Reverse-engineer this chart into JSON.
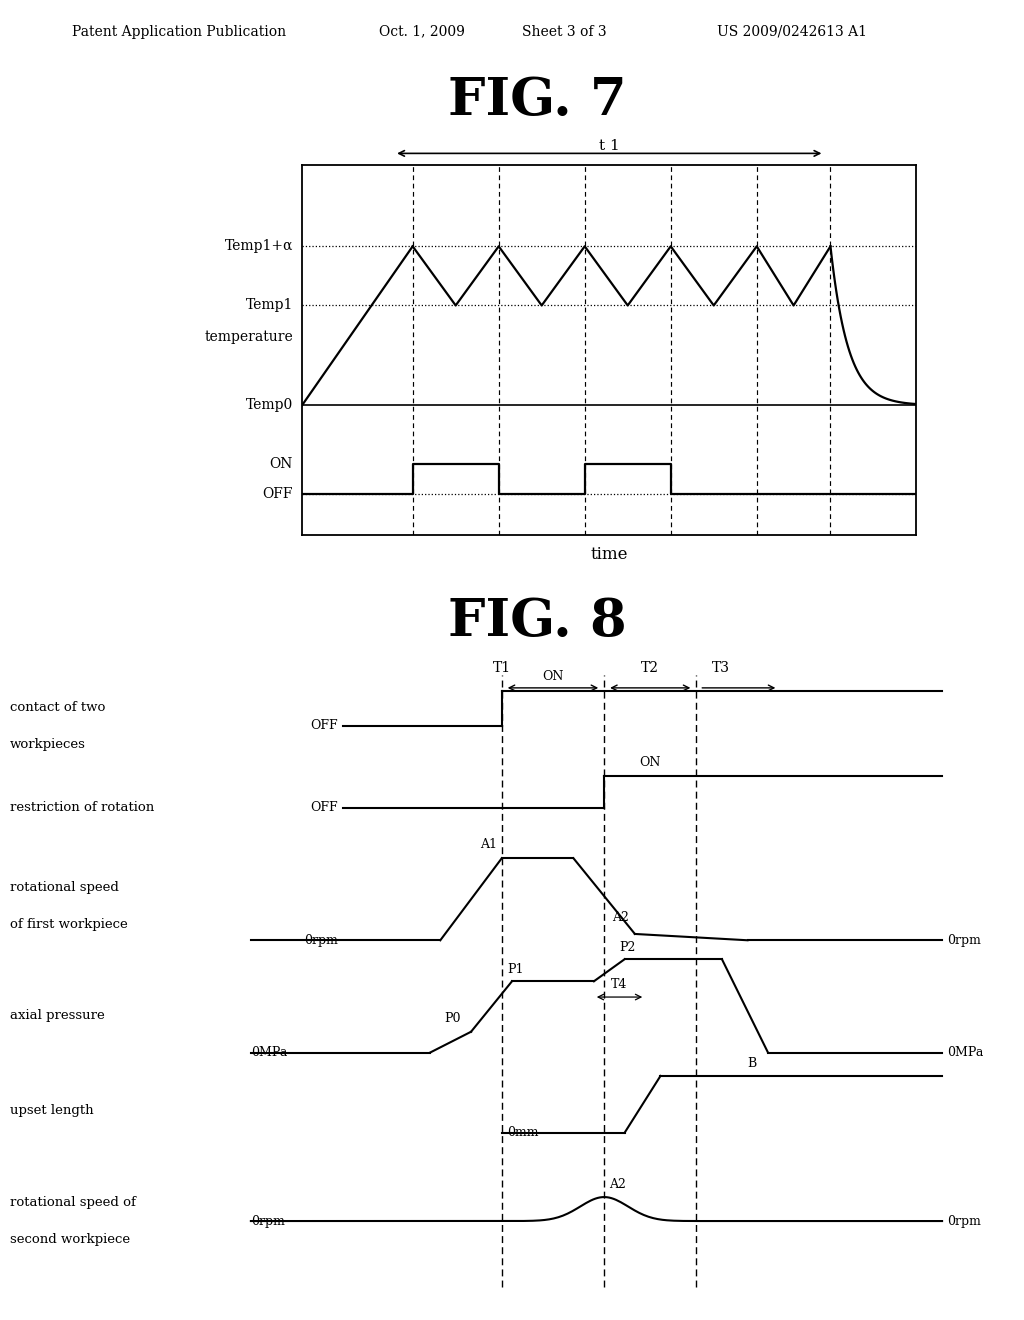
{
  "background_color": "#ffffff",
  "header_text": "Patent Application Publication",
  "header_date": "Oct. 1, 2009",
  "header_sheet": "Sheet 3 of 3",
  "header_patent": "US 2009/0242613 A1",
  "fig7_title": "FIG. 7",
  "fig8_title": "FIG. 8",
  "fig7_xlabel": "time",
  "fig8_row_labels_left": [
    "contact of two\nworkpieces",
    "restriction of rotation",
    "rotational speed\nof first workpiece",
    "axial pressure",
    "upset length",
    "rotational speed of\nsecond workpiece"
  ]
}
